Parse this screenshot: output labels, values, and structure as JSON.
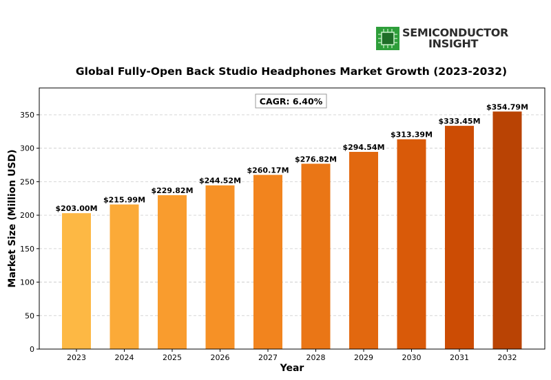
{
  "logo": {
    "line1": "SEMICONDUCTOR",
    "line2": "INSIGHT",
    "icon": "chip-icon",
    "color": "#2e9e3a"
  },
  "chart_data": {
    "type": "bar",
    "title": "Global Fully-Open Back Studio Headphones Market Growth (2023-2032)",
    "xlabel": "Year",
    "ylabel": "Market Size (Million USD)",
    "categories": [
      "2023",
      "2024",
      "2025",
      "2026",
      "2027",
      "2028",
      "2029",
      "2030",
      "2031",
      "2032"
    ],
    "values": [
      203.0,
      215.99,
      229.82,
      244.52,
      260.17,
      276.82,
      294.54,
      313.39,
      333.45,
      354.79
    ],
    "data_labels": [
      "$203.00M",
      "$215.99M",
      "$229.82M",
      "$244.52M",
      "$260.17M",
      "$276.82M",
      "$294.54M",
      "$313.39M",
      "$333.45M",
      "$354.79M"
    ],
    "ylim": [
      0,
      390
    ],
    "yticks": [
      0,
      50,
      100,
      150,
      200,
      250,
      300,
      350
    ],
    "grid": "y-dashed",
    "annotation": "CAGR: 6.40%",
    "bar_colors": [
      "#fdb844",
      "#fbaa38",
      "#f99c2e",
      "#f69126",
      "#f2841e",
      "#ea7616",
      "#e2680f",
      "#d95a09",
      "#cc4c04",
      "#b94304"
    ]
  }
}
